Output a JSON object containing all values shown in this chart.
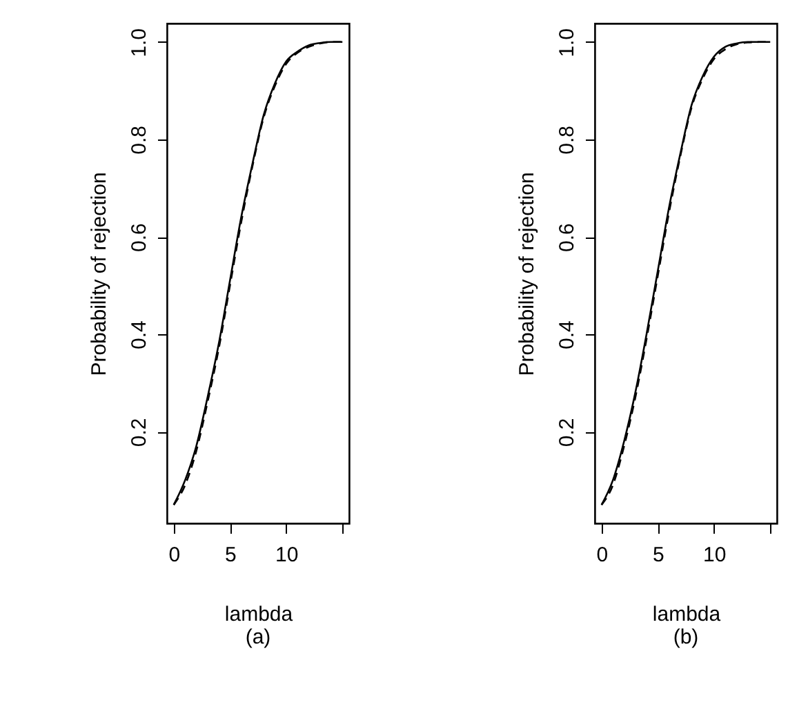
{
  "chart_data": [
    {
      "type": "line",
      "xlabel": "lambda",
      "ylabel": "Probability of rejection",
      "annotations": [
        "(a)"
      ],
      "xlim": [
        -0.6,
        15.6
      ],
      "ylim": [
        0.012,
        1.038
      ],
      "xticks": [
        0,
        5,
        10,
        {
          "value": 15,
          "label": null
        }
      ],
      "yticks": [
        0.2,
        0.4,
        0.6,
        0.8,
        {
          "value": 1,
          "label": "1.0"
        }
      ],
      "x": [
        0,
        1,
        2,
        3,
        4,
        5,
        6,
        7,
        8,
        9,
        10,
        11,
        12,
        13,
        14,
        15
      ],
      "series": [
        {
          "color": "#000000",
          "line_style": "solid",
          "values": [
            0.05,
            0.1,
            0.17,
            0.27,
            0.38,
            0.51,
            0.64,
            0.75,
            0.85,
            0.915,
            0.96,
            0.98,
            0.993,
            0.998,
            1.0,
            1.0
          ]
        },
        {
          "color": "#000000",
          "line_style": "dashed",
          "values": [
            0.05,
            0.09,
            0.16,
            0.26,
            0.37,
            0.5,
            0.63,
            0.745,
            0.845,
            0.91,
            0.955,
            0.978,
            0.99,
            0.997,
            1.0,
            1.0
          ]
        }
      ]
    },
    {
      "type": "line",
      "xlabel": "lambda",
      "ylabel": "Probability of rejection",
      "annotations": [
        "(b)"
      ],
      "xlim": [
        -0.6,
        15.6
      ],
      "ylim": [
        0.012,
        1.038
      ],
      "xticks": [
        0,
        5,
        10,
        {
          "value": 15,
          "label": null
        }
      ],
      "yticks": [
        0.2,
        0.4,
        0.6,
        0.8,
        {
          "value": 1,
          "label": "1.0"
        }
      ],
      "x": [
        0,
        1,
        2,
        3,
        4,
        5,
        6,
        7,
        8,
        9,
        10,
        11,
        12,
        13,
        14,
        15
      ],
      "series": [
        {
          "color": "#000000",
          "line_style": "solid",
          "values": [
            0.05,
            0.1,
            0.18,
            0.28,
            0.4,
            0.53,
            0.66,
            0.77,
            0.87,
            0.93,
            0.97,
            0.99,
            0.997,
            1.0,
            1.0,
            1.0
          ]
        },
        {
          "color": "#000000",
          "line_style": "dashed",
          "values": [
            0.05,
            0.09,
            0.17,
            0.27,
            0.39,
            0.52,
            0.65,
            0.765,
            0.865,
            0.925,
            0.965,
            0.985,
            0.995,
            0.999,
            1.0,
            1.0
          ]
        }
      ]
    }
  ]
}
